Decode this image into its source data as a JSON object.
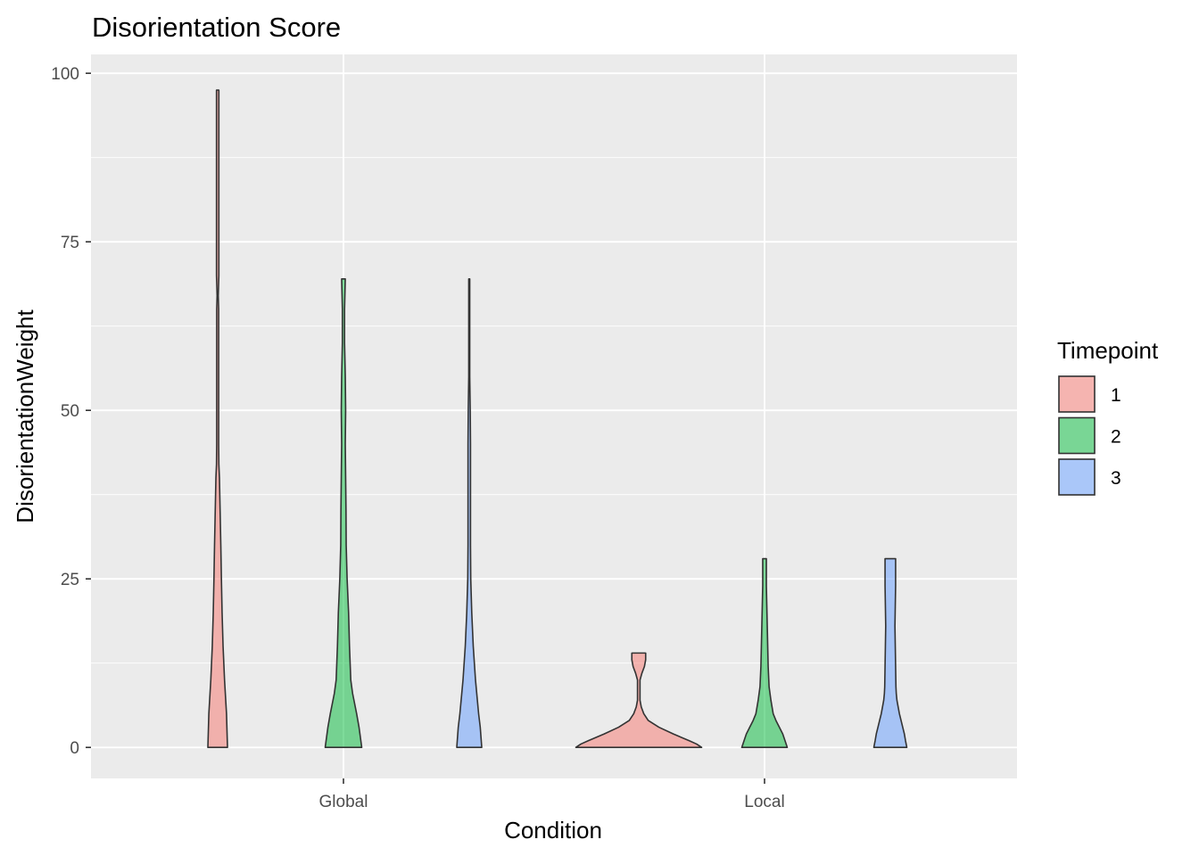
{
  "chart_data": {
    "type": "violin",
    "title": "Disorientation Score",
    "xlabel": "Condition",
    "ylabel": "DisorientationWeight",
    "categories": [
      "Global",
      "Local"
    ],
    "y_ticks": [
      "0",
      "25",
      "50",
      "75",
      "100"
    ],
    "ylim": [
      -4.6,
      102.8
    ],
    "grid": true,
    "legend": {
      "title": "Timepoint",
      "position": "right",
      "entries": [
        {
          "label": "1",
          "color": "#F8766D"
        },
        {
          "label": "2",
          "color": "#00BA38"
        },
        {
          "label": "3",
          "color": "#619CFF"
        }
      ]
    },
    "series": [
      {
        "condition": "Global",
        "timepoint": "1",
        "density": [
          [
            0,
            1.0
          ],
          [
            5,
            0.9
          ],
          [
            10,
            0.7
          ],
          [
            15,
            0.55
          ],
          [
            20,
            0.45
          ],
          [
            25,
            0.38
          ],
          [
            30,
            0.32
          ],
          [
            35,
            0.25
          ],
          [
            40,
            0.18
          ],
          [
            42,
            0.12
          ],
          [
            45,
            0.1
          ],
          [
            50,
            0.1
          ],
          [
            55,
            0.1
          ],
          [
            60,
            0.1
          ],
          [
            65,
            0.1
          ],
          [
            67,
            0.06
          ],
          [
            70,
            0.12
          ],
          [
            75,
            0.12
          ],
          [
            80,
            0.12
          ],
          [
            85,
            0.12
          ],
          [
            90,
            0.12
          ],
          [
            95,
            0.12
          ],
          [
            97.5,
            0.12
          ]
        ]
      },
      {
        "condition": "Global",
        "timepoint": "2",
        "density": [
          [
            0,
            1.0
          ],
          [
            3,
            0.85
          ],
          [
            5,
            0.72
          ],
          [
            8,
            0.5
          ],
          [
            10,
            0.4
          ],
          [
            15,
            0.33
          ],
          [
            20,
            0.28
          ],
          [
            25,
            0.2
          ],
          [
            30,
            0.15
          ],
          [
            35,
            0.14
          ],
          [
            40,
            0.12
          ],
          [
            45,
            0.1
          ],
          [
            50,
            0.12
          ],
          [
            55,
            0.1
          ],
          [
            60,
            0.06
          ],
          [
            65,
            0.06
          ],
          [
            69.5,
            0.1
          ]
        ]
      },
      {
        "condition": "Global",
        "timepoint": "3",
        "density": [
          [
            0,
            1.0
          ],
          [
            3,
            0.88
          ],
          [
            5,
            0.75
          ],
          [
            8,
            0.6
          ],
          [
            10,
            0.5
          ],
          [
            15,
            0.32
          ],
          [
            20,
            0.2
          ],
          [
            25,
            0.12
          ],
          [
            30,
            0.1
          ],
          [
            35,
            0.1
          ],
          [
            40,
            0.1
          ],
          [
            45,
            0.1
          ],
          [
            50,
            0.08
          ],
          [
            55,
            0.04
          ],
          [
            60,
            0.04
          ],
          [
            65,
            0.04
          ],
          [
            69.5,
            0.04
          ]
        ]
      },
      {
        "condition": "Local",
        "timepoint": "1",
        "density": [
          [
            0,
            1.0
          ],
          [
            0.5,
            0.92
          ],
          [
            1,
            0.8
          ],
          [
            2,
            0.55
          ],
          [
            3,
            0.32
          ],
          [
            4,
            0.15
          ],
          [
            5,
            0.08
          ],
          [
            6,
            0.04
          ],
          [
            7,
            0.02
          ],
          [
            8,
            0.02
          ],
          [
            9,
            0.02
          ],
          [
            10,
            0.02
          ],
          [
            11,
            0.05
          ],
          [
            12,
            0.09
          ],
          [
            13,
            0.11
          ],
          [
            14,
            0.11
          ]
        ]
      },
      {
        "condition": "Local",
        "timepoint": "2",
        "density": [
          [
            0,
            1.0
          ],
          [
            1,
            0.9
          ],
          [
            2,
            0.8
          ],
          [
            3,
            0.65
          ],
          [
            4,
            0.5
          ],
          [
            5,
            0.38
          ],
          [
            7,
            0.28
          ],
          [
            9,
            0.2
          ],
          [
            12,
            0.16
          ],
          [
            15,
            0.14
          ],
          [
            18,
            0.12
          ],
          [
            21,
            0.1
          ],
          [
            24,
            0.08
          ],
          [
            26,
            0.08
          ],
          [
            28,
            0.08
          ]
        ]
      },
      {
        "condition": "Local",
        "timepoint": "3",
        "density": [
          [
            0,
            1.0
          ],
          [
            1,
            0.92
          ],
          [
            2,
            0.85
          ],
          [
            3,
            0.75
          ],
          [
            4,
            0.65
          ],
          [
            5,
            0.55
          ],
          [
            7,
            0.4
          ],
          [
            8,
            0.36
          ],
          [
            9,
            0.34
          ],
          [
            12,
            0.32
          ],
          [
            15,
            0.3
          ],
          [
            18,
            0.28
          ],
          [
            21,
            0.3
          ],
          [
            24,
            0.32
          ],
          [
            26,
            0.32
          ],
          [
            28,
            0.32
          ]
        ]
      }
    ]
  }
}
